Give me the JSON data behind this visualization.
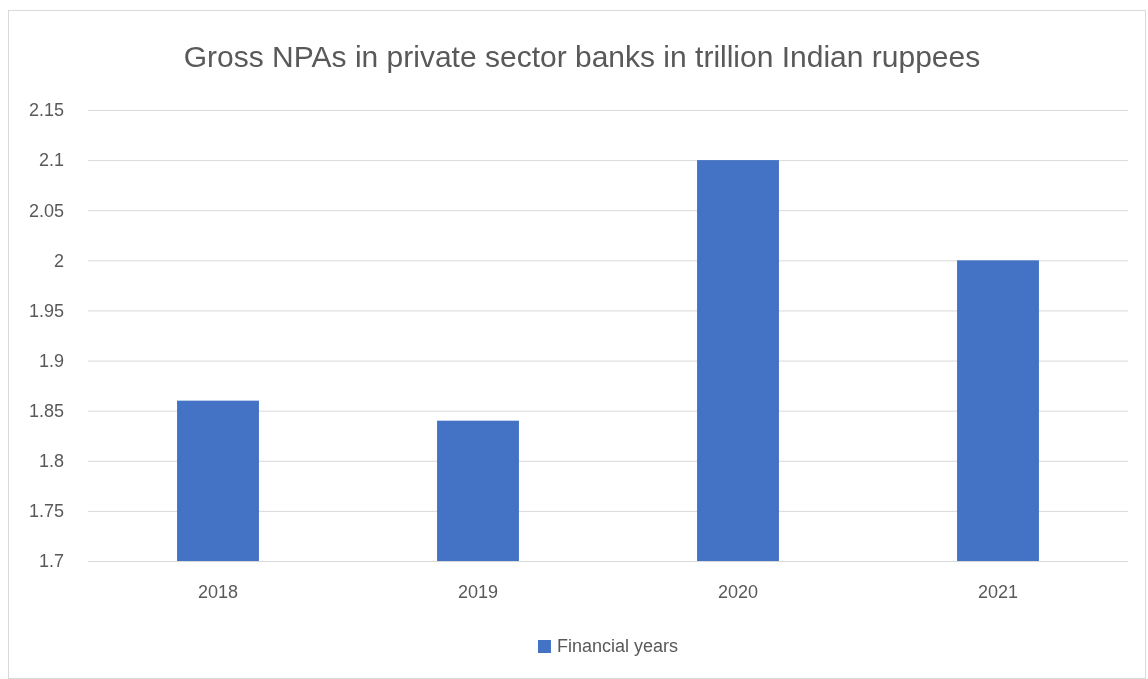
{
  "chart_data": {
    "type": "bar",
    "title": "Gross NPAs in private sector banks in trillion Indian ruppees",
    "categories": [
      "2018",
      "2019",
      "2020",
      "2021"
    ],
    "series": [
      {
        "name": "Financial years",
        "color": "#4472c4",
        "values": [
          1.86,
          1.84,
          2.1,
          2.0
        ]
      }
    ],
    "ylim": [
      1.7,
      2.15
    ],
    "yticks": [
      1.7,
      1.75,
      1.8,
      1.85,
      1.9,
      1.95,
      2,
      2.05,
      2.1,
      2.15
    ],
    "grid": "y",
    "legend": "bottom"
  }
}
